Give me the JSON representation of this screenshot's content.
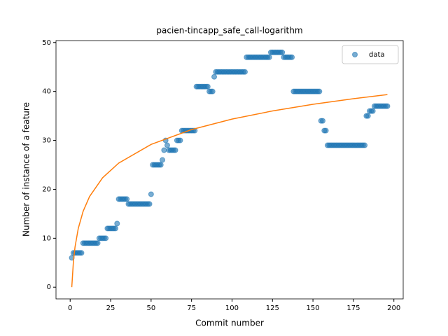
{
  "chart_data": {
    "type": "scatter",
    "title": "pacien-tincapp_safe_call-logarithm",
    "x_label": "Commit number",
    "y_label": "Number of instance of a feature",
    "xlim": [
      -8.75,
      205.75
    ],
    "ylim": [
      -2.4,
      50.4
    ],
    "xticks": [
      0,
      25,
      50,
      75,
      100,
      125,
      150,
      175,
      200
    ],
    "yticks": [
      0,
      10,
      20,
      30,
      40,
      50
    ],
    "legend": "upper right",
    "series": [
      {
        "name": "data",
        "color": "#1f77b4",
        "marker": "o",
        "x": [
          1,
          2,
          3,
          4,
          5,
          6,
          7,
          8,
          9,
          10,
          11,
          12,
          13,
          14,
          15,
          16,
          17,
          18,
          19,
          20,
          21,
          22,
          23,
          24,
          25,
          26,
          27,
          28,
          29,
          30,
          31,
          32,
          33,
          34,
          35,
          36,
          37,
          38,
          39,
          40,
          41,
          42,
          43,
          44,
          45,
          46,
          47,
          48,
          49,
          50,
          51,
          52,
          53,
          54,
          55,
          56,
          57,
          58,
          59,
          60,
          61,
          62,
          63,
          64,
          65,
          66,
          67,
          68,
          69,
          70,
          71,
          72,
          73,
          74,
          75,
          76,
          77,
          78,
          79,
          80,
          81,
          82,
          83,
          84,
          85,
          86,
          87,
          88,
          89,
          90,
          91,
          92,
          93,
          94,
          95,
          96,
          97,
          98,
          99,
          100,
          101,
          102,
          103,
          104,
          105,
          106,
          107,
          108,
          109,
          110,
          111,
          112,
          113,
          114,
          115,
          116,
          117,
          118,
          119,
          120,
          121,
          122,
          123,
          124,
          125,
          126,
          127,
          128,
          129,
          130,
          131,
          132,
          133,
          134,
          135,
          136,
          137,
          138,
          139,
          140,
          141,
          142,
          143,
          144,
          145,
          146,
          147,
          148,
          149,
          150,
          151,
          152,
          153,
          154,
          155,
          156,
          157,
          158,
          159,
          160,
          161,
          162,
          163,
          164,
          165,
          166,
          167,
          168,
          169,
          170,
          171,
          172,
          173,
          174,
          175,
          176,
          177,
          178,
          179,
          180,
          181,
          182,
          183,
          184,
          185,
          186,
          187,
          188,
          189,
          190,
          191,
          192,
          193,
          194,
          195,
          196
        ],
        "values": [
          6,
          7,
          7,
          7,
          7,
          7,
          7,
          9,
          9,
          9,
          9,
          9,
          9,
          9,
          9,
          9,
          9,
          10,
          10,
          10,
          10,
          10,
          12,
          12,
          12,
          12,
          12,
          12,
          13,
          18,
          18,
          18,
          18,
          18,
          18,
          17,
          17,
          17,
          17,
          17,
          17,
          17,
          17,
          17,
          17,
          17,
          17,
          17,
          17,
          19,
          25,
          25,
          25,
          25,
          25,
          25,
          26,
          28,
          30,
          29,
          28,
          28,
          28,
          28,
          28,
          30,
          30,
          30,
          32,
          32,
          32,
          32,
          32,
          32,
          32,
          32,
          32,
          41,
          41,
          41,
          41,
          41,
          41,
          41,
          41,
          40,
          40,
          40,
          43,
          44,
          44,
          44,
          44,
          44,
          44,
          44,
          44,
          44,
          44,
          44,
          44,
          44,
          44,
          44,
          44,
          44,
          44,
          44,
          47,
          47,
          47,
          47,
          47,
          47,
          47,
          47,
          47,
          47,
          47,
          47,
          47,
          47,
          47,
          48,
          48,
          48,
          48,
          48,
          48,
          48,
          48,
          47,
          47,
          47,
          47,
          47,
          47,
          40,
          40,
          40,
          40,
          40,
          40,
          40,
          40,
          40,
          40,
          40,
          40,
          40,
          40,
          40,
          40,
          40,
          34,
          34,
          32,
          32,
          29,
          29,
          29,
          29,
          29,
          29,
          29,
          29,
          29,
          29,
          29,
          29,
          29,
          29,
          29,
          29,
          29,
          29,
          29,
          29,
          29,
          29,
          29,
          29,
          35,
          35,
          36,
          36,
          36,
          37,
          37,
          37,
          37,
          37,
          37,
          37,
          37,
          37
        ]
      },
      {
        "color": "#ff7f0e",
        "linestyle": "-",
        "x": [
          1,
          2,
          3,
          5,
          8,
          12,
          20,
          30,
          50,
          75,
          100,
          125,
          150,
          175,
          196
        ],
        "values": [
          0,
          5.17,
          8.2,
          12.0,
          15.5,
          18.54,
          22.35,
          25.37,
          29.18,
          32.21,
          34.35,
          36.02,
          37.38,
          38.53,
          39.37
        ]
      }
    ]
  }
}
